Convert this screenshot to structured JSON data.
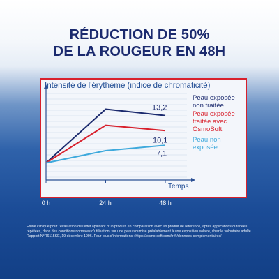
{
  "title_line1": "RÉDUCTION DE 50%",
  "title_line2": "DE LA ROUGEUR EN 48H",
  "colors": {
    "navy": "#1b2a6e",
    "red": "#d8202c",
    "lightblue": "#3ea9dc",
    "panel_border": "#d8202c"
  },
  "chart_data": {
    "type": "line",
    "title": "Intensité de l'érythème (indice de chromaticité)",
    "xlabel": "Temps",
    "categories": [
      "0 h",
      "24 h",
      "48 h"
    ],
    "x": [
      0,
      24,
      48
    ],
    "grid": true,
    "series": [
      {
        "name": "Peau exposée non traitée",
        "name_lines": [
          "Peau exposée",
          "non traitée"
        ],
        "color": "#1b2a6e",
        "values": [
          3.5,
          14.5,
          13.2
        ],
        "end_label": "13,2"
      },
      {
        "name": "Peau exposée traitée avec OsmoSoft",
        "name_lines": [
          "Peau exposée",
          "traitée avec",
          "OsmoSoft"
        ],
        "color": "#d8202c",
        "values": [
          3.5,
          11.2,
          10.1
        ],
        "end_label": "10,1"
      },
      {
        "name": "Peau non exposée",
        "name_lines": [
          "Peau non",
          "exposée"
        ],
        "color": "#3ea9dc",
        "values": [
          3.5,
          6.0,
          7.1
        ],
        "end_label": "7,1"
      }
    ]
  },
  "footnote": "Etude clinique pour l'évaluation de l'effet apaisant d'un produit, en comparaison avec un produit de référence, après applications cutanées répétées, dans des conditions normales d'utilisation, sur une peau soumise préalablement à une exposition solaire, chez le volontaire adulte. Rapport N°R6115SE, 19 décembre 1996. Pour plus d'informations : https://osmo-soft.com/fr-fr/donnees-complementaires/"
}
